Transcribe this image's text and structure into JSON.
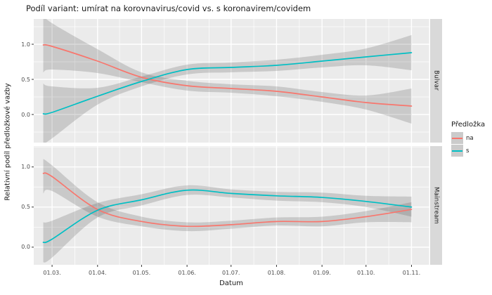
{
  "title": "Podíl variant: umírat na korovnavirus/covid vs. s koronavirem/covidem",
  "axes": {
    "x_title": "Datum",
    "y_title": "Relativní podíl předložkové vazby",
    "x_ticks": [
      "01.03.",
      "01.04.",
      "01.05.",
      "01.06.",
      "01.07.",
      "01.08.",
      "01.09.",
      "01.10.",
      "01.11."
    ],
    "y_ticks": [
      "1.0",
      "0.5",
      "0.0"
    ]
  },
  "facets": [
    "Bulvar",
    "Mainstream"
  ],
  "legend": {
    "title": "Předložka",
    "items": [
      {
        "label": "na",
        "color": "#F8766D"
      },
      {
        "label": "s",
        "color": "#00BFC4"
      }
    ]
  },
  "colors": {
    "panel_bg": "#EBEBEB",
    "strip_bg": "#D9D9D9",
    "grid": "#FFFFFF",
    "ribbon": "rgba(60,60,60,0.19)",
    "tick_mark": "#333333",
    "tick_text": "#4D4D4D",
    "na": "#F8766D",
    "s": "#00BFC4"
  },
  "chart_data": {
    "type": "line",
    "title": "Podíl variant: umírat na korovnavirus/covid vs. s koronavirem/covidem",
    "xlabel": "Datum",
    "ylabel": "Relativní podíl předložkové vazby",
    "legend_title": "Předložka",
    "smoothed": true,
    "confidence_band": true,
    "x_axis": {
      "tick_labels": [
        "01.03.",
        "01.04.",
        "01.05.",
        "01.06.",
        "01.07.",
        "01.08.",
        "01.09.",
        "01.10.",
        "01.11."
      ],
      "tick_days": [
        0,
        31,
        61,
        92,
        122,
        153,
        184,
        214,
        245
      ],
      "minor_days": [
        15.5,
        46,
        76.5,
        107,
        137.5,
        168.5,
        199,
        229.5
      ],
      "range_days": [
        -12.5,
        257
      ]
    },
    "y_axis": {
      "ticks": [
        1.0,
        0.5,
        0.0
      ],
      "minor": [
        -0.25,
        0.25,
        0.75,
        1.25
      ]
    },
    "sample_days": [
      -6,
      0,
      31,
      61,
      92,
      122,
      153,
      184,
      214,
      245
    ],
    "panels": [
      {
        "facet": "Bulvar",
        "ylim": [
          -0.4,
          1.36
        ],
        "series": [
          {
            "name": "na",
            "color": "#F8766D",
            "values": [
              0.99,
              0.97,
              0.76,
              0.53,
              0.41,
              0.37,
              0.33,
              0.25,
              0.17,
              0.12
            ],
            "ci_upper": [
              1.42,
              1.3,
              0.93,
              0.6,
              0.48,
              0.43,
              0.4,
              0.32,
              0.27,
              0.37
            ],
            "ci_lower": [
              0.6,
              0.64,
              0.59,
              0.46,
              0.34,
              0.31,
              0.26,
              0.18,
              0.07,
              -0.13
            ]
          },
          {
            "name": "s",
            "color": "#00BFC4",
            "values": [
              0.01,
              0.03,
              0.26,
              0.47,
              0.64,
              0.67,
              0.7,
              0.76,
              0.82,
              0.88
            ],
            "ci_upper": [
              0.44,
              0.4,
              0.38,
              0.54,
              0.71,
              0.74,
              0.78,
              0.85,
              0.94,
              1.13
            ],
            "ci_lower": [
              -0.42,
              -0.34,
              0.14,
              0.4,
              0.57,
              0.6,
              0.62,
              0.67,
              0.7,
              0.63
            ]
          }
        ]
      },
      {
        "facet": "Mainstream",
        "ylim": [
          -0.22,
          1.26
        ],
        "series": [
          {
            "name": "na",
            "color": "#F8766D",
            "values": [
              0.92,
              0.88,
              0.47,
              0.32,
              0.26,
              0.28,
              0.32,
              0.32,
              0.38,
              0.47
            ],
            "ci_upper": [
              1.1,
              1.02,
              0.56,
              0.38,
              0.31,
              0.33,
              0.37,
              0.38,
              0.45,
              0.56
            ],
            "ci_lower": [
              0.67,
              0.7,
              0.38,
              0.26,
              0.2,
              0.23,
              0.27,
              0.26,
              0.31,
              0.31
            ]
          },
          {
            "name": "s",
            "color": "#00BFC4",
            "values": [
              0.06,
              0.1,
              0.46,
              0.59,
              0.71,
              0.67,
              0.64,
              0.62,
              0.57,
              0.5
            ],
            "ci_upper": [
              0.31,
              0.33,
              0.55,
              0.66,
              0.77,
              0.72,
              0.69,
              0.68,
              0.64,
              0.63
            ],
            "ci_lower": [
              -0.19,
              -0.13,
              0.37,
              0.52,
              0.65,
              0.62,
              0.58,
              0.56,
              0.5,
              0.38
            ]
          }
        ]
      }
    ]
  }
}
